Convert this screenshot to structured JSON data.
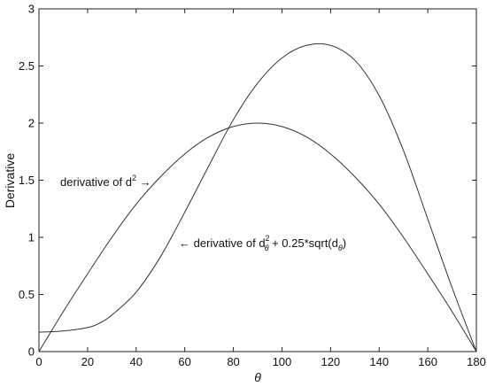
{
  "chart_data": {
    "type": "line",
    "title": "",
    "xlabel": "θ",
    "ylabel": "Derivative",
    "xlim": [
      0,
      180
    ],
    "ylim": [
      0,
      3
    ],
    "xticks": [
      "0",
      "20",
      "40",
      "60",
      "80",
      "100",
      "120",
      "140",
      "160",
      "180"
    ],
    "yticks": [
      "0",
      "0.5",
      "1",
      "1.5",
      "2",
      "2.5",
      "3"
    ],
    "grid": false,
    "legend": "none",
    "series": [
      {
        "x": [
          0,
          10,
          20,
          30,
          40,
          50,
          60,
          70,
          80,
          90,
          100,
          110,
          120,
          130,
          140,
          150,
          160,
          170,
          180
        ],
        "y": [
          0,
          0.35,
          0.68,
          1.0,
          1.29,
          1.53,
          1.73,
          1.88,
          1.97,
          2.0,
          1.97,
          1.88,
          1.73,
          1.53,
          1.29,
          1.0,
          0.68,
          0.35,
          0
        ]
      },
      {
        "x": [
          0,
          10,
          20,
          25,
          30,
          40,
          50,
          60,
          70,
          80,
          90,
          100,
          110,
          120,
          130,
          140,
          150,
          160,
          170,
          180
        ],
        "y": [
          0.17,
          0.18,
          0.21,
          0.25,
          0.32,
          0.52,
          0.83,
          1.22,
          1.63,
          2.03,
          2.35,
          2.57,
          2.68,
          2.68,
          2.55,
          2.24,
          1.76,
          1.16,
          0.56,
          0
        ]
      }
    ],
    "annotations": [
      {
        "text": "derivative of d",
        "sup": "2",
        "suffix": " →"
      },
      {
        "text": "← derivative of d",
        "sup": "2",
        "sub": "θ",
        "suffix": " + 0.25*sqrt(d",
        "sub2": "θ",
        "end": ")"
      }
    ]
  }
}
